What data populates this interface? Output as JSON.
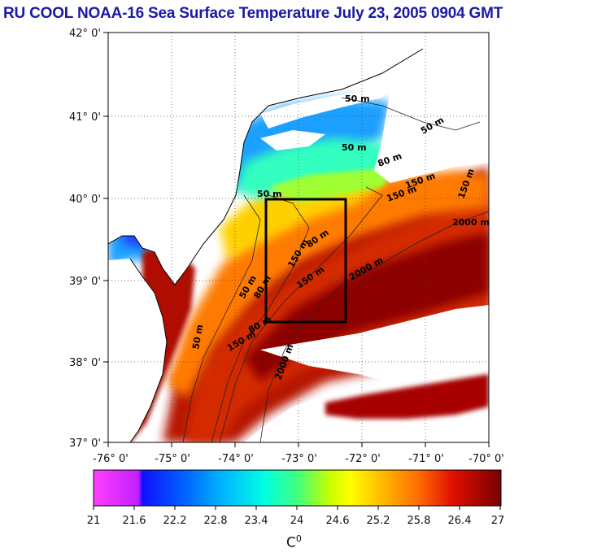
{
  "title": "RU COOL  NOAA-16 Sea Surface Temperature July 23, 2005 0904 GMT",
  "lat_labels": [
    "42° 0'",
    "41° 0'",
    "40° 0'",
    "39° 0'",
    "38° 0'",
    "37° 0'"
  ],
  "lon_labels": [
    "-76° 0'",
    "-75° 0'",
    "-74° 0'",
    "-73° 0'",
    "-72° 0'",
    "-71° 0'",
    "-70° 0'"
  ],
  "colorbar": {
    "ticks": [
      "21",
      "21.6",
      "22.2",
      "22.8",
      "23.4",
      "24",
      "24.6",
      "25.2",
      "25.8",
      "26.4",
      "27"
    ],
    "unit": "C",
    "unit_sup": "0"
  },
  "contour_labels": [
    "50 m",
    "50 m",
    "50 m",
    "80 m",
    "150 m",
    "2000 m",
    "150 m",
    "80 m",
    "150 m",
    "2000 m",
    "50 m",
    "80 m",
    "150 m",
    "50 m",
    "80 m",
    "150 m",
    "2000 m",
    "50 m",
    "150 m"
  ],
  "colors": {
    "title": "#1a1aa8",
    "land": "#ffffff",
    "cloud": "#ffffff",
    "box": "#000000"
  }
}
